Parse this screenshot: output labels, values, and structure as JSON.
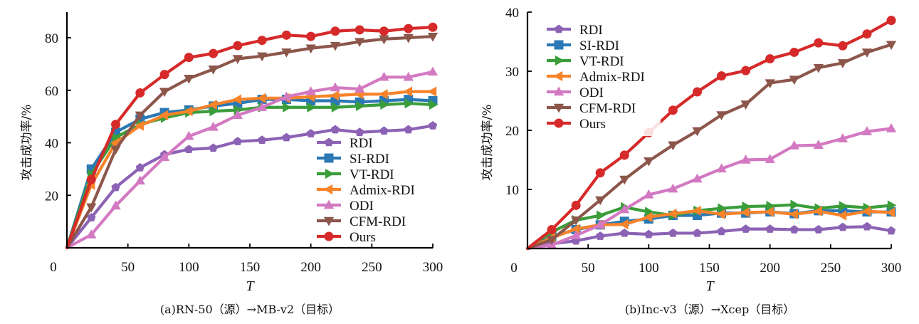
{
  "chart_data": [
    {
      "type": "line",
      "id": "a",
      "caption": "(a)RN-50（源）→MB-v2（目标）",
      "xlabel": "T",
      "ylabel": "攻击成功率/%",
      "xlim": [
        0,
        300
      ],
      "ylim": [
        0,
        90
      ],
      "xticks": [
        0,
        50,
        100,
        150,
        200,
        250,
        300
      ],
      "xtick_labels": [
        "0",
        "50",
        "100",
        "150",
        "200",
        "250",
        "300"
      ],
      "yticks": [
        20,
        40,
        60,
        80
      ],
      "ytick_labels": [
        "20",
        "40",
        "60",
        "80"
      ],
      "grid": false,
      "legend_position": "bottom-right",
      "x": [
        0,
        20,
        40,
        60,
        80,
        100,
        120,
        140,
        160,
        180,
        200,
        220,
        240,
        260,
        280,
        300
      ],
      "series": [
        {
          "name": "RDI",
          "color": "#8c62b5",
          "marker": "pentagon",
          "values": [
            0,
            11.5,
            23,
            30.5,
            35.5,
            37.5,
            38,
            40.5,
            41,
            42,
            43.5,
            45,
            44,
            44.5,
            45,
            46.5
          ]
        },
        {
          "name": "SI-RDI",
          "color": "#2a78b4",
          "marker": "square",
          "values": [
            0,
            30,
            44,
            49,
            51.5,
            52.5,
            54,
            55,
            56.5,
            56.5,
            56,
            56,
            55.5,
            56,
            56.5,
            56
          ]
        },
        {
          "name": "VT-RDI",
          "color": "#3a9d3a",
          "marker": "triangle-right",
          "values": [
            0,
            28,
            42,
            47,
            49.5,
            51.5,
            52,
            52.5,
            53.5,
            53.5,
            53.5,
            53.5,
            54,
            54.5,
            55,
            54.5
          ]
        },
        {
          "name": "Admix-RDI",
          "color": "#f7832a",
          "marker": "triangle-left",
          "values": [
            0,
            24,
            40,
            46.5,
            50.5,
            52,
            54.5,
            56.5,
            57,
            57,
            57.5,
            58,
            58.5,
            58.5,
            59.5,
            59.5
          ]
        },
        {
          "name": "ODI",
          "color": "#d379c2",
          "marker": "triangle-up",
          "values": [
            0,
            5,
            16,
            25.5,
            34.5,
            42.5,
            46,
            50.5,
            53.5,
            57.5,
            59.5,
            61,
            60.5,
            65,
            65,
            67
          ]
        },
        {
          "name": "CFM-RDI",
          "color": "#8c564b",
          "marker": "triangle-down",
          "values": [
            0,
            15.5,
            37.5,
            50.5,
            59.5,
            64.5,
            68,
            72,
            73,
            74.5,
            76,
            77,
            78.5,
            79.5,
            80,
            80.5
          ]
        },
        {
          "name": "Ours",
          "color": "#d62a2a",
          "marker": "circle",
          "values": [
            0,
            26,
            47,
            59,
            66,
            72.5,
            74,
            77,
            79,
            81,
            80.5,
            82.5,
            83,
            82.5,
            83.5,
            84
          ]
        }
      ]
    },
    {
      "type": "line",
      "id": "b",
      "caption": "(b)Inc-v3（源）→Xcep（目标）",
      "xlabel": "T",
      "ylabel": "攻击成功率/%",
      "xlim": [
        0,
        300
      ],
      "ylim": [
        0,
        40
      ],
      "xticks": [
        0,
        50,
        100,
        150,
        200,
        250,
        300
      ],
      "xtick_labels": [
        "0",
        "50",
        "100",
        "150",
        "200",
        "250",
        "300"
      ],
      "yticks": [
        10,
        20,
        30,
        40
      ],
      "ytick_labels": [
        "10",
        "20",
        "30",
        "40"
      ],
      "grid": false,
      "legend_position": "top-left",
      "x": [
        0,
        20,
        40,
        60,
        80,
        100,
        120,
        140,
        160,
        180,
        200,
        220,
        240,
        260,
        280,
        300
      ],
      "series": [
        {
          "name": "RDI",
          "color": "#8c62b5",
          "marker": "pentagon",
          "values": [
            0,
            0.8,
            1.3,
            2.1,
            2.6,
            2.4,
            2.6,
            2.6,
            2.9,
            3.3,
            3.3,
            3.2,
            3.2,
            3.6,
            3.7,
            3.0
          ]
        },
        {
          "name": "SI-RDI",
          "color": "#2a78b4",
          "marker": "square",
          "values": [
            0,
            2.0,
            3.2,
            4.0,
            4.6,
            5.0,
            5.6,
            5.6,
            6.0,
            6.0,
            6.2,
            5.9,
            6.4,
            6.4,
            6.2,
            6.2
          ]
        },
        {
          "name": "VT-RDI",
          "color": "#3a9d3a",
          "marker": "triangle-right",
          "values": [
            0,
            2.8,
            4.8,
            5.6,
            7.0,
            6.2,
            5.6,
            6.4,
            6.8,
            7.1,
            7.2,
            7.4,
            6.8,
            7.2,
            6.9,
            7.3
          ]
        },
        {
          "name": "Admix-RDI",
          "color": "#f7832a",
          "marker": "triangle-left",
          "values": [
            0,
            1.8,
            3.3,
            4.0,
            4.1,
            5.3,
            5.9,
            6.4,
            5.8,
            6.1,
            6.2,
            5.8,
            6.3,
            5.6,
            6.3,
            6.1
          ]
        },
        {
          "name": "ODI",
          "color": "#d379c2",
          "marker": "triangle-up",
          "values": [
            0,
            0.6,
            2.2,
            4.0,
            6.6,
            9.1,
            10.1,
            11.8,
            13.5,
            15.0,
            15.1,
            17.4,
            17.5,
            18.6,
            19.8,
            20.3
          ]
        },
        {
          "name": "CFM-RDI",
          "color": "#8c564b",
          "marker": "triangle-down",
          "values": [
            0,
            1.5,
            4.8,
            8.2,
            11.7,
            14.8,
            17.5,
            19.9,
            22.6,
            24.4,
            28.0,
            28.6,
            30.6,
            31.4,
            33.2,
            34.5
          ]
        },
        {
          "name": "Ours",
          "color": "#d62a2a",
          "marker": "circle",
          "values": [
            0,
            3.2,
            7.3,
            12.8,
            15.8,
            19.6,
            23.4,
            26.5,
            29.2,
            30.1,
            32.1,
            33.2,
            34.8,
            34.3,
            36.3,
            38.6
          ]
        }
      ]
    }
  ]
}
